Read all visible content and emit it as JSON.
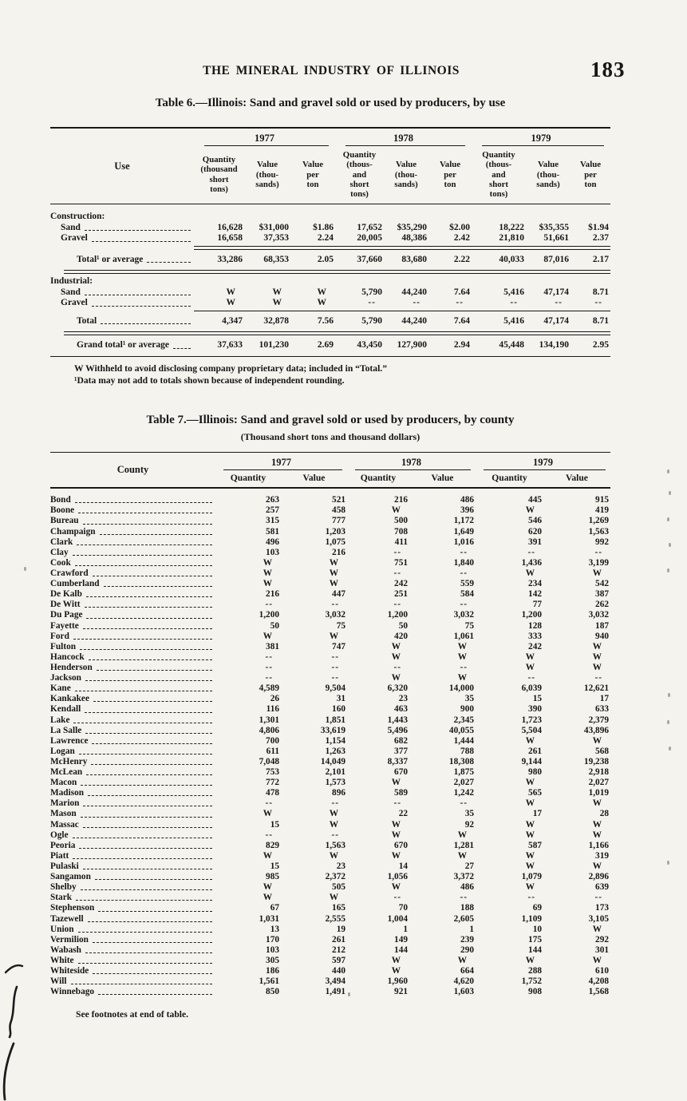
{
  "page": {
    "running_head": "THE MINERAL INDUSTRY OF ILLINOIS",
    "page_number": "183"
  },
  "table6": {
    "title": "Table 6.—Illinois: Sand and gravel sold or used by producers, by use",
    "header": {
      "use_label": "Use",
      "years": [
        "1977",
        "1978",
        "1979"
      ],
      "columns": [
        "Quantity\n(thousand\nshort\ntons)",
        "Value\n(thou-\nsands)",
        "Value\nper\nton",
        "Quantity\n(thous-\nand\nshort\ntons)",
        "Value\n(thou-\nsands)",
        "Value\nper\nton",
        "Quantity\n(thous-\nand\nshort\ntons)",
        "Value\n(thou-\nsands)",
        "Value\nper\nton"
      ]
    },
    "rows": [
      {
        "kind": "group",
        "label": "Construction:",
        "indent": 0,
        "leader": false
      },
      {
        "kind": "data",
        "label": "Sand",
        "indent": 1,
        "leader": true,
        "cells": [
          "16,628",
          "$31,000",
          "$1.86",
          "17,652",
          "$35,290",
          "$2.00",
          "18,222",
          "$35,355",
          "$1.94"
        ]
      },
      {
        "kind": "data",
        "label": "Gravel",
        "indent": 1,
        "leader": true,
        "cells": [
          "16,658",
          "37,353",
          "2.24",
          "20,005",
          "48,386",
          "2.42",
          "21,810",
          "51,661",
          "2.37"
        ],
        "rule_after": "double-data"
      },
      {
        "kind": "total",
        "label": "Total¹ or average",
        "indent": 2,
        "leader": true,
        "cells": [
          "33,286",
          "68,353",
          "2.05",
          "37,660",
          "83,680",
          "2.22",
          "40,033",
          "87,016",
          "2.17"
        ],
        "rule_after": "double-full"
      },
      {
        "kind": "group",
        "label": "Industrial:",
        "indent": 0,
        "leader": false
      },
      {
        "kind": "data",
        "label": "Sand",
        "indent": 1,
        "leader": true,
        "cells": [
          "W",
          "W",
          "W",
          "5,790",
          "44,240",
          "7.64",
          "5,416",
          "47,174",
          "8.71"
        ]
      },
      {
        "kind": "data",
        "label": "Gravel",
        "indent": 1,
        "leader": true,
        "cells": [
          "W",
          "W",
          "W",
          "--",
          "--",
          "--",
          "--",
          "--",
          "--"
        ],
        "rule_after": "single-data"
      },
      {
        "kind": "total",
        "label": "Total",
        "indent": 2,
        "leader": true,
        "cells": [
          "4,347",
          "32,878",
          "7.56",
          "5,790",
          "44,240",
          "7.64",
          "5,416",
          "47,174",
          "8.71"
        ],
        "rule_after": "double-full"
      },
      {
        "kind": "total",
        "label": "Grand total¹ or average",
        "indent": 2,
        "leader": true,
        "cells": [
          "37,633",
          "101,230",
          "2.69",
          "43,450",
          "127,900",
          "2.94",
          "45,448",
          "134,190",
          "2.95"
        ],
        "rule_after": "bottom"
      }
    ],
    "footnotes": [
      "W Withheld to avoid disclosing company proprietary data; included in “Total.”",
      "¹Data may not add to totals shown because of independent rounding."
    ]
  },
  "table7": {
    "title": "Table 7.—Illinois: Sand and gravel sold or used by producers, by county",
    "subtitle": "(Thousand short tons and thousand dollars)",
    "header": {
      "county_label": "County",
      "years": [
        "1977",
        "1978",
        "1979"
      ],
      "columns": [
        "Quantity",
        "Value",
        "Quantity",
        "Value",
        "Quantity",
        "Value"
      ]
    },
    "rows": [
      {
        "county": "Bond",
        "values": [
          "263",
          "521",
          "216",
          "486",
          "445",
          "915"
        ]
      },
      {
        "county": "Boone",
        "values": [
          "257",
          "458",
          "W",
          "396",
          "W",
          "419"
        ]
      },
      {
        "county": "Bureau",
        "values": [
          "315",
          "777",
          "500",
          "1,172",
          "546",
          "1,269"
        ]
      },
      {
        "county": "Champaign",
        "values": [
          "581",
          "1,203",
          "708",
          "1,649",
          "620",
          "1,563"
        ]
      },
      {
        "county": "Clark",
        "values": [
          "496",
          "1,075",
          "411",
          "1,016",
          "391",
          "992"
        ]
      },
      {
        "county": "Clay",
        "values": [
          "103",
          "216",
          "--",
          "--",
          "--",
          "--"
        ]
      },
      {
        "county": "Cook",
        "values": [
          "W",
          "W",
          "751",
          "1,840",
          "1,436",
          "3,199"
        ]
      },
      {
        "county": "Crawford",
        "values": [
          "W",
          "W",
          "--",
          "--",
          "W",
          "W"
        ]
      },
      {
        "county": "Cumberland",
        "values": [
          "W",
          "W",
          "242",
          "559",
          "234",
          "542"
        ]
      },
      {
        "county": "De Kalb",
        "values": [
          "216",
          "447",
          "251",
          "584",
          "142",
          "387"
        ]
      },
      {
        "county": "De Witt",
        "values": [
          "--",
          "--",
          "--",
          "--",
          "77",
          "262"
        ]
      },
      {
        "county": "Du Page",
        "values": [
          "1,200",
          "3,032",
          "1,200",
          "3,032",
          "1,200",
          "3,032"
        ]
      },
      {
        "county": "Fayette",
        "values": [
          "50",
          "75",
          "50",
          "75",
          "128",
          "187"
        ]
      },
      {
        "county": "Ford",
        "values": [
          "W",
          "W",
          "420",
          "1,061",
          "333",
          "940"
        ]
      },
      {
        "county": "Fulton",
        "values": [
          "381",
          "747",
          "W",
          "W",
          "242",
          "W"
        ]
      },
      {
        "county": "Hancock",
        "values": [
          "--",
          "--",
          "W",
          "W",
          "W",
          "W"
        ]
      },
      {
        "county": "Henderson",
        "values": [
          "--",
          "--",
          "--",
          "--",
          "W",
          "W"
        ]
      },
      {
        "county": "Jackson",
        "values": [
          "--",
          "--",
          "W",
          "W",
          "--",
          "--"
        ]
      },
      {
        "county": "Kane",
        "values": [
          "4,589",
          "9,504",
          "6,320",
          "14,000",
          "6,039",
          "12,621"
        ]
      },
      {
        "county": "Kankakee",
        "values": [
          "26",
          "31",
          "23",
          "35",
          "15",
          "17"
        ]
      },
      {
        "county": "Kendall",
        "values": [
          "116",
          "160",
          "463",
          "900",
          "390",
          "633"
        ]
      },
      {
        "county": "Lake",
        "values": [
          "1,301",
          "1,851",
          "1,443",
          "2,345",
          "1,723",
          "2,379"
        ]
      },
      {
        "county": "La Salle",
        "values": [
          "4,806",
          "33,619",
          "5,496",
          "40,055",
          "5,504",
          "43,896"
        ]
      },
      {
        "county": "Lawrence",
        "values": [
          "700",
          "1,154",
          "682",
          "1,444",
          "W",
          "W"
        ]
      },
      {
        "county": "Logan",
        "values": [
          "611",
          "1,263",
          "377",
          "788",
          "261",
          "568"
        ]
      },
      {
        "county": "McHenry",
        "values": [
          "7,048",
          "14,049",
          "8,337",
          "18,308",
          "9,144",
          "19,238"
        ]
      },
      {
        "county": "McLean",
        "values": [
          "753",
          "2,101",
          "670",
          "1,875",
          "980",
          "2,918"
        ]
      },
      {
        "county": "Macon",
        "values": [
          "772",
          "1,573",
          "W",
          "2,027",
          "W",
          "2,027"
        ]
      },
      {
        "county": "Madison",
        "values": [
          "478",
          "896",
          "589",
          "1,242",
          "565",
          "1,019"
        ]
      },
      {
        "county": "Marion",
        "values": [
          "--",
          "--",
          "--",
          "--",
          "W",
          "W"
        ]
      },
      {
        "county": "Mason",
        "values": [
          "W",
          "W",
          "22",
          "35",
          "17",
          "28"
        ]
      },
      {
        "county": "Massac",
        "values": [
          "15",
          "W",
          "W",
          "92",
          "W",
          "W"
        ]
      },
      {
        "county": "Ogle",
        "values": [
          "--",
          "--",
          "W",
          "W",
          "W",
          "W"
        ]
      },
      {
        "county": "Peoria",
        "values": [
          "829",
          "1,563",
          "670",
          "1,281",
          "587",
          "1,166"
        ]
      },
      {
        "county": "Piatt",
        "values": [
          "W",
          "W",
          "W",
          "W",
          "W",
          "319"
        ]
      },
      {
        "county": "Pulaski",
        "values": [
          "15",
          "23",
          "14",
          "27",
          "W",
          "W"
        ]
      },
      {
        "county": "Sangamon",
        "values": [
          "985",
          "2,372",
          "1,056",
          "3,372",
          "1,079",
          "2,896"
        ]
      },
      {
        "county": "Shelby",
        "values": [
          "W",
          "505",
          "W",
          "486",
          "W",
          "639"
        ]
      },
      {
        "county": "Stark",
        "values": [
          "W",
          "W",
          "--",
          "--",
          "--",
          "--"
        ]
      },
      {
        "county": "Stephenson",
        "values": [
          "67",
          "165",
          "70",
          "188",
          "69",
          "173"
        ]
      },
      {
        "county": "Tazewell",
        "values": [
          "1,031",
          "2,555",
          "1,004",
          "2,605",
          "1,109",
          "3,105"
        ]
      },
      {
        "county": "Union",
        "values": [
          "13",
          "19",
          "1",
          "1",
          "10",
          "W"
        ]
      },
      {
        "county": "Vermilion",
        "values": [
          "170",
          "261",
          "149",
          "239",
          "175",
          "292"
        ]
      },
      {
        "county": "Wabash",
        "values": [
          "103",
          "212",
          "144",
          "290",
          "144",
          "301"
        ]
      },
      {
        "county": "White",
        "values": [
          "305",
          "597",
          "W",
          "W",
          "W",
          "W"
        ]
      },
      {
        "county": "Whiteside",
        "values": [
          "186",
          "440",
          "W",
          "664",
          "288",
          "610"
        ]
      },
      {
        "county": "Will",
        "values": [
          "1,561",
          "3,494",
          "1,960",
          "4,620",
          "1,752",
          "4,208"
        ]
      },
      {
        "county": "Winnebago",
        "values": [
          "850",
          "1,491",
          "921",
          "1,603",
          "908",
          "1,568"
        ]
      }
    ],
    "footer": "See footnotes at end of table."
  }
}
